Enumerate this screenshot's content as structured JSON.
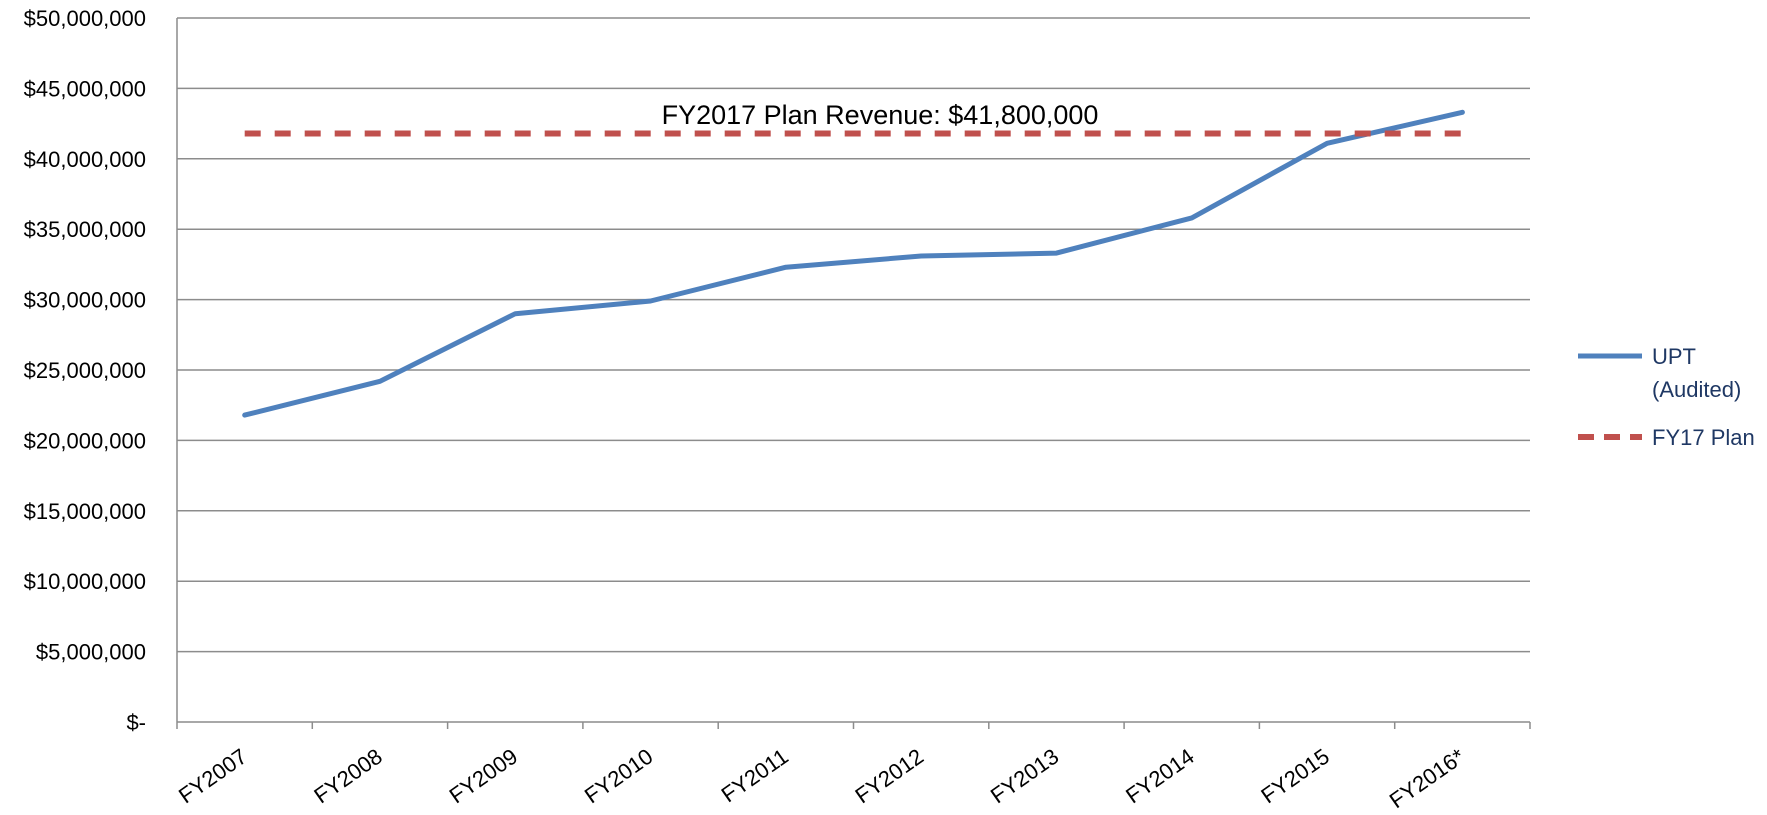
{
  "chart_data": {
    "type": "line",
    "title": "",
    "xlabel": "",
    "ylabel": "",
    "categories": [
      "FY2007",
      "FY2008",
      "FY2009",
      "FY2010",
      "FY2011",
      "FY2012",
      "FY2013",
      "FY2014",
      "FY2015",
      "FY2016*"
    ],
    "ylim": [
      0,
      50000000
    ],
    "yticks": [
      0,
      5000000,
      10000000,
      15000000,
      20000000,
      25000000,
      30000000,
      35000000,
      40000000,
      45000000,
      50000000
    ],
    "ytick_labels": [
      "$-",
      "$5,000,000",
      "$10,000,000",
      "$15,000,000",
      "$20,000,000",
      "$25,000,000",
      "$30,000,000",
      "$35,000,000",
      "$40,000,000",
      "$45,000,000",
      "$50,000,000"
    ],
    "grid": true,
    "legend_position": "right",
    "series": [
      {
        "name_lines": [
          "UPT",
          "(Audited)"
        ],
        "values": [
          21800000,
          24200000,
          29000000,
          29900000,
          32300000,
          33100000,
          33300000,
          35800000,
          41100000,
          43300000
        ],
        "color": "#4f81bd",
        "style": "solid"
      },
      {
        "name_lines": [
          "FY17 Plan"
        ],
        "values": [
          41800000,
          41800000,
          41800000,
          41800000,
          41800000,
          41800000,
          41800000,
          41800000,
          41800000,
          41800000
        ],
        "color": "#c0504d",
        "style": "dashed"
      }
    ],
    "annotations": [
      {
        "text": "FY2017 Plan Revenue: $41,800,000"
      }
    ]
  }
}
